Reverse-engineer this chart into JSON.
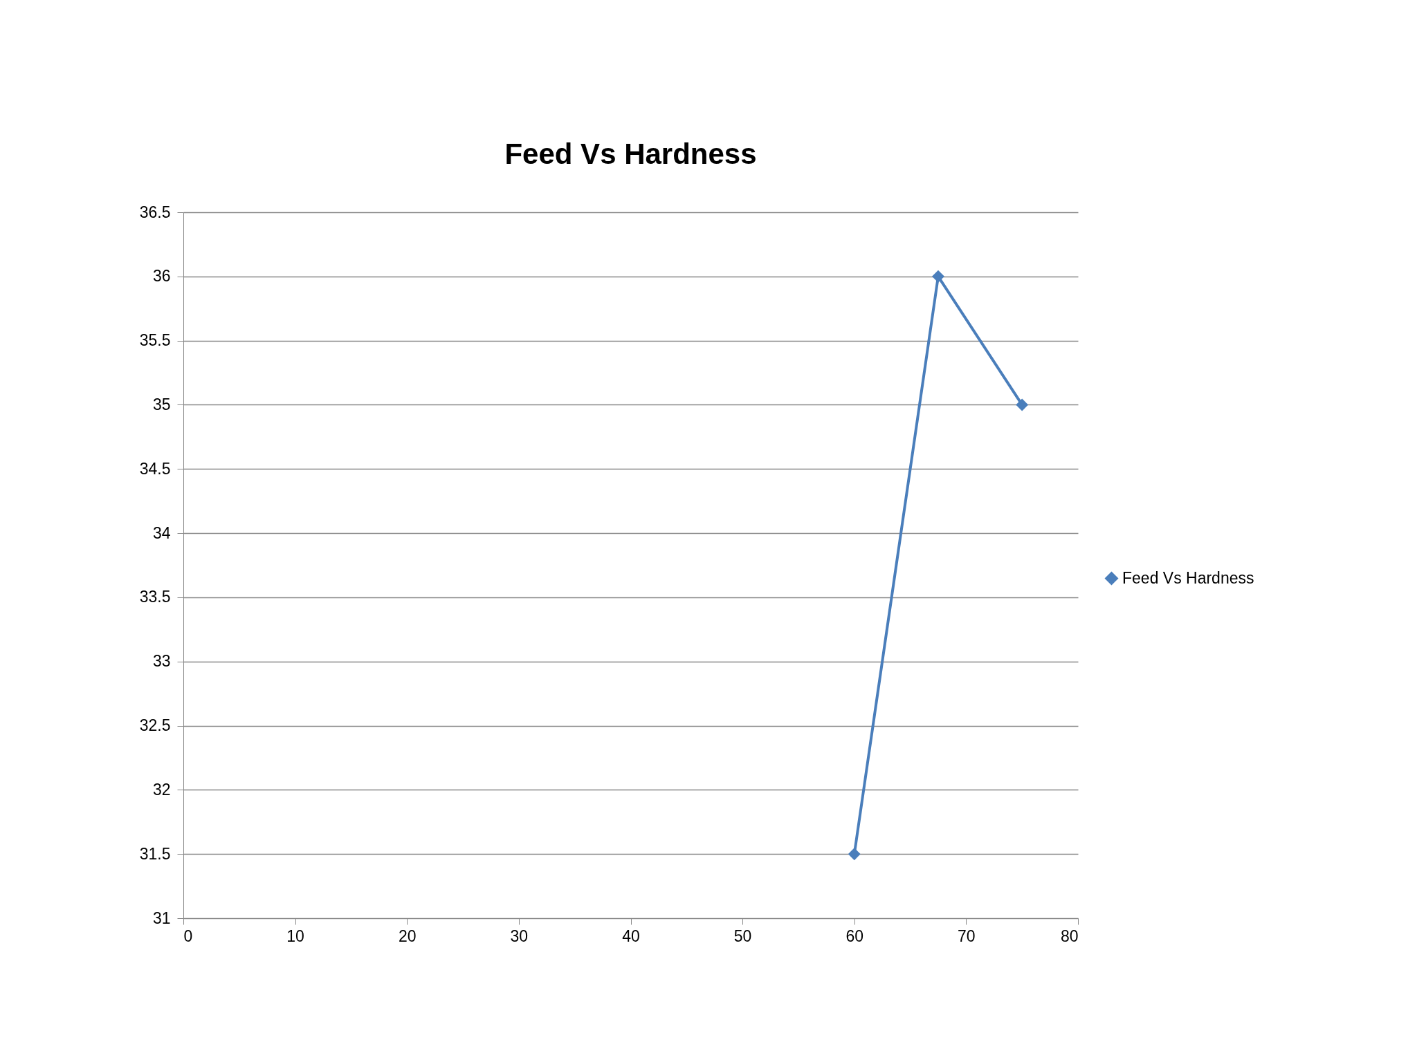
{
  "chart_data": {
    "type": "line",
    "title": "Feed Vs Hardness",
    "series": [
      {
        "name": "Feed Vs Hardness",
        "color": "#4a7ebb",
        "x": [
          60,
          67.5,
          75
        ],
        "values": [
          31.5,
          36,
          35
        ]
      }
    ],
    "xlim": [
      0,
      80
    ],
    "xticks": [
      0,
      10,
      20,
      30,
      40,
      50,
      60,
      70,
      80
    ],
    "ylim": [
      31,
      36.5
    ],
    "yticks": [
      31,
      31.5,
      32,
      32.5,
      33,
      33.5,
      34,
      34.5,
      35,
      35.5,
      36,
      36.5
    ],
    "grid": "y",
    "legend": "right",
    "marker": "diamond",
    "line_style": "solid"
  }
}
